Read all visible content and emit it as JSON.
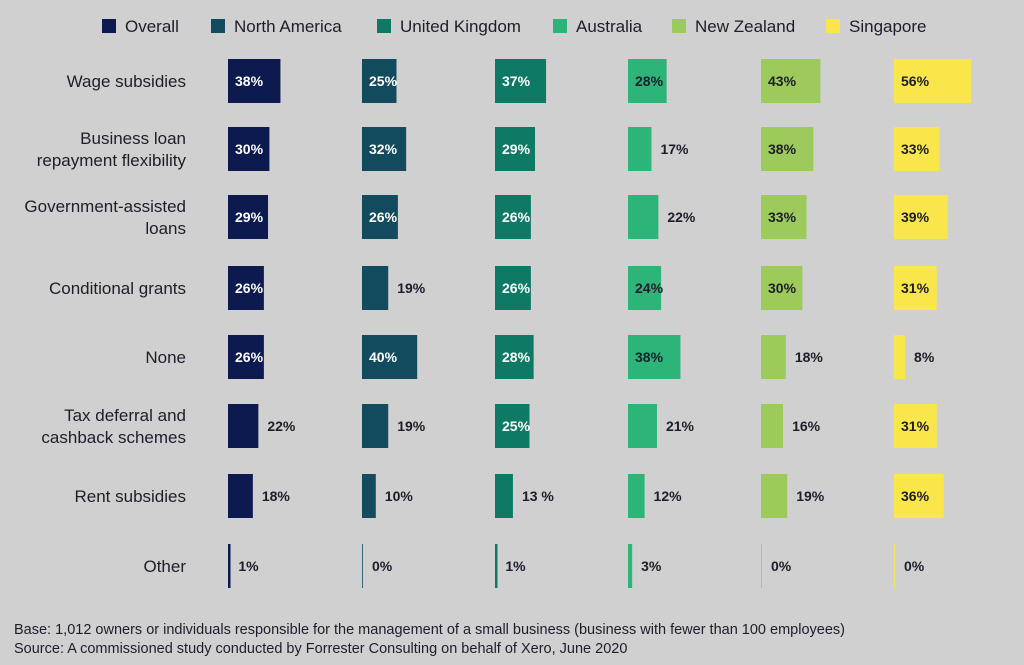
{
  "chart_data": {
    "type": "bar",
    "orientation": "horizontal",
    "layout": "small-multiples",
    "categories": [
      [
        "Wage subsidies"
      ],
      [
        "Business loan",
        "repayment flexibility"
      ],
      [
        "Government-assisted",
        "loans"
      ],
      [
        "Conditional grants"
      ],
      [
        "None"
      ],
      [
        "Tax deferral and",
        "cashback schemes"
      ],
      [
        "Rent subsidies"
      ],
      [
        "Other"
      ]
    ],
    "series": [
      {
        "name": "Overall",
        "color": "#0d1a4f",
        "labels": [
          "38%",
          "30%",
          "29%",
          "26%",
          "26%",
          "22%",
          "18%",
          "1%"
        ],
        "values": [
          38,
          30,
          29,
          26,
          26,
          22,
          18,
          1
        ]
      },
      {
        "name": "North America",
        "color": "#134b5e",
        "labels": [
          "25%",
          "32%",
          "26%",
          "19%",
          "40%",
          "19%",
          "10%",
          "0%"
        ],
        "values": [
          25,
          32,
          26,
          19,
          40,
          19,
          10,
          0
        ]
      },
      {
        "name": "United Kingdom",
        "color": "#0e7a66",
        "labels": [
          "37%",
          "29%",
          "26%",
          "26%",
          "28%",
          "25%",
          "13 %",
          "1%"
        ],
        "values": [
          37,
          29,
          26,
          26,
          28,
          25,
          13,
          1
        ]
      },
      {
        "name": "Australia",
        "color": "#2db478",
        "labels": [
          "28%",
          "17%",
          "22%",
          "24%",
          "38%",
          "21%",
          "12%",
          "3%"
        ],
        "values": [
          28,
          17,
          22,
          24,
          38,
          21,
          12,
          3
        ]
      },
      {
        "name": "New Zealand",
        "color": "#9dcb5b",
        "labels": [
          "43%",
          "38%",
          "33%",
          "30%",
          "18%",
          "16%",
          "19%",
          "0%"
        ],
        "values": [
          43,
          38,
          33,
          30,
          18,
          16,
          19,
          0
        ]
      },
      {
        "name": "Singapore",
        "color": "#f8e64a",
        "labels": [
          "56%",
          "33%",
          "39%",
          "31%",
          "8%",
          "31%",
          "36%",
          "0%"
        ],
        "values": [
          56,
          33,
          39,
          31,
          8,
          31,
          36,
          0
        ]
      }
    ],
    "legend_position": "top",
    "grid": false
  },
  "footnotes": {
    "base": "Base: 1,012 owners or individuals responsible for the management of a small business (business with fewer than 100 employees)",
    "source": "Source: A commissioned study conducted by Forrester Consulting on behalf of Xero, June 2020"
  }
}
